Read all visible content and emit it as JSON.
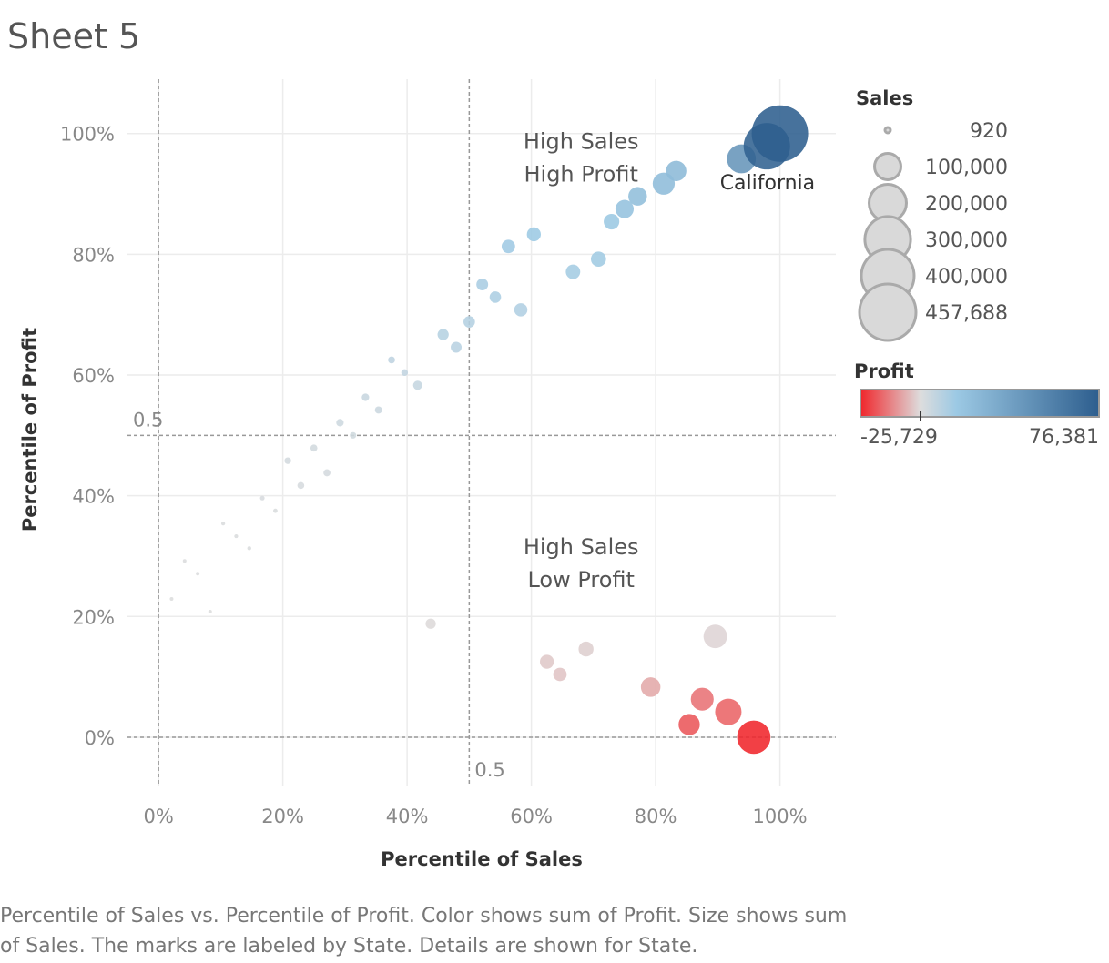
{
  "sheet_title": "Sheet 5",
  "caption": "Percentile of Sales vs. Percentile of Profit.  Color shows sum of Profit.  Size shows sum of Sales.  The marks are labeled by State.  Details are shown for State.",
  "colors": {
    "negative": "#f0262b",
    "neutral": "#dddddd",
    "light_positive": "#9cc9e4",
    "positive": "#2d5e8e",
    "grid": "#ececec",
    "reference_line": "#999999"
  },
  "chart_data": {
    "type": "scatter",
    "title": "Sheet 5",
    "xlabel": "Percentile of Sales",
    "ylabel": "Percentile of Profit",
    "xlim": [
      -0.05,
      1.09
    ],
    "ylim": [
      -0.08,
      1.09
    ],
    "x_ticks": [
      "0%",
      "20%",
      "40%",
      "60%",
      "80%",
      "100%"
    ],
    "y_ticks": [
      "0%",
      "20%",
      "40%",
      "60%",
      "80%",
      "100%"
    ],
    "x_tick_values": [
      0,
      0.2,
      0.4,
      0.6,
      0.8,
      1.0
    ],
    "y_tick_values": [
      0,
      0.2,
      0.4,
      0.6,
      0.8,
      1.0
    ],
    "grid": true,
    "reference_lines": [
      {
        "axis": "x",
        "value": 0,
        "label": ""
      },
      {
        "axis": "x",
        "value": 0.5,
        "label": "0.5"
      },
      {
        "axis": "y",
        "value": 0,
        "label": ""
      },
      {
        "axis": "y",
        "value": 0.5,
        "label": "0.5"
      }
    ],
    "annotations": [
      {
        "lines": [
          "High Sales",
          "High Profit"
        ],
        "x": 0.68,
        "y": 0.975
      },
      {
        "lines": [
          "High Sales",
          "Low Profit"
        ],
        "x": 0.68,
        "y": 0.303
      }
    ],
    "point_labels": [
      {
        "text": "California",
        "x": 0.98,
        "y": 0.92
      }
    ],
    "points": [
      {
        "x": 1.0,
        "y": 1.0,
        "sales": 457688,
        "profit": 76381
      },
      {
        "x": 0.979,
        "y": 0.979,
        "sales": 310000,
        "profit": 74000
      },
      {
        "x": 0.938,
        "y": 0.958,
        "sales": 120000,
        "profit": 43000
      },
      {
        "x": 0.833,
        "y": 0.938,
        "sales": 60000,
        "profit": 21000
      },
      {
        "x": 0.813,
        "y": 0.917,
        "sales": 70000,
        "profit": 19500
      },
      {
        "x": 0.771,
        "y": 0.896,
        "sales": 50000,
        "profit": 18000
      },
      {
        "x": 0.75,
        "y": 0.875,
        "sales": 48000,
        "profit": 16000
      },
      {
        "x": 0.729,
        "y": 0.854,
        "sales": 35000,
        "profit": 12000
      },
      {
        "x": 0.708,
        "y": 0.792,
        "sales": 33000,
        "profit": 10500
      },
      {
        "x": 0.667,
        "y": 0.771,
        "sales": 30000,
        "profit": 10000
      },
      {
        "x": 0.604,
        "y": 0.833,
        "sales": 28000,
        "profit": 11500
      },
      {
        "x": 0.563,
        "y": 0.813,
        "sales": 26000,
        "profit": 11000
      },
      {
        "x": 0.583,
        "y": 0.708,
        "sales": 25000,
        "profit": 8000
      },
      {
        "x": 0.521,
        "y": 0.75,
        "sales": 20000,
        "profit": 9000
      },
      {
        "x": 0.542,
        "y": 0.729,
        "sales": 19000,
        "profit": 8700
      },
      {
        "x": 0.5,
        "y": 0.688,
        "sales": 19000,
        "profit": 7300
      },
      {
        "x": 0.458,
        "y": 0.667,
        "sales": 18000,
        "profit": 7000
      },
      {
        "x": 0.479,
        "y": 0.646,
        "sales": 17000,
        "profit": 6500
      },
      {
        "x": 0.417,
        "y": 0.583,
        "sales": 12000,
        "profit": 4200
      },
      {
        "x": 0.375,
        "y": 0.625,
        "sales": 7000,
        "profit": 5500
      },
      {
        "x": 0.396,
        "y": 0.604,
        "sales": 6500,
        "profit": 5000
      },
      {
        "x": 0.333,
        "y": 0.563,
        "sales": 8000,
        "profit": 3800
      },
      {
        "x": 0.354,
        "y": 0.542,
        "sales": 7500,
        "profit": 3200
      },
      {
        "x": 0.292,
        "y": 0.521,
        "sales": 8000,
        "profit": 2800
      },
      {
        "x": 0.313,
        "y": 0.5,
        "sales": 6000,
        "profit": 2400
      },
      {
        "x": 0.208,
        "y": 0.458,
        "sales": 6500,
        "profit": 1800
      },
      {
        "x": 0.25,
        "y": 0.479,
        "sales": 7000,
        "profit": 2100
      },
      {
        "x": 0.229,
        "y": 0.417,
        "sales": 6800,
        "profit": 1300
      },
      {
        "x": 0.271,
        "y": 0.438,
        "sales": 7200,
        "profit": 1500
      },
      {
        "x": 0.167,
        "y": 0.396,
        "sales": 3000,
        "profit": 1000
      },
      {
        "x": 0.188,
        "y": 0.375,
        "sales": 2800,
        "profit": 800
      },
      {
        "x": 0.104,
        "y": 0.354,
        "sales": 2200,
        "profit": 600
      },
      {
        "x": 0.125,
        "y": 0.333,
        "sales": 2100,
        "profit": 500
      },
      {
        "x": 0.146,
        "y": 0.313,
        "sales": 2300,
        "profit": 450
      },
      {
        "x": 0.042,
        "y": 0.292,
        "sales": 1500,
        "profit": 350
      },
      {
        "x": 0.063,
        "y": 0.271,
        "sales": 1600,
        "profit": 300
      },
      {
        "x": 0.021,
        "y": 0.229,
        "sales": 1200,
        "profit": 200
      },
      {
        "x": 0.083,
        "y": 0.208,
        "sales": 920,
        "profit": 150
      },
      {
        "x": 0.438,
        "y": 0.188,
        "sales": 15000,
        "profit": -500
      },
      {
        "x": 0.896,
        "y": 0.167,
        "sales": 80000,
        "profit": -1200
      },
      {
        "x": 0.688,
        "y": 0.146,
        "sales": 32000,
        "profit": -2000
      },
      {
        "x": 0.625,
        "y": 0.125,
        "sales": 28000,
        "profit": -3000
      },
      {
        "x": 0.646,
        "y": 0.104,
        "sales": 26000,
        "profit": -3500
      },
      {
        "x": 0.792,
        "y": 0.083,
        "sales": 55000,
        "profit": -7500
      },
      {
        "x": 0.875,
        "y": 0.063,
        "sales": 75000,
        "profit": -15000
      },
      {
        "x": 0.917,
        "y": 0.042,
        "sales": 100000,
        "profit": -17000
      },
      {
        "x": 0.854,
        "y": 0.021,
        "sales": 65000,
        "profit": -19000
      },
      {
        "x": 0.958,
        "y": 0.0,
        "sales": 160000,
        "profit": -25729
      }
    ]
  },
  "legend_sales": {
    "title": "Sales",
    "items": [
      {
        "label": "920",
        "value": 920
      },
      {
        "label": "100,000",
        "value": 100000
      },
      {
        "label": "200,000",
        "value": 200000
      },
      {
        "label": "300,000",
        "value": 300000
      },
      {
        "label": "400,000",
        "value": 400000
      },
      {
        "label": "457,688",
        "value": 457688
      }
    ]
  },
  "legend_profit": {
    "title": "Profit",
    "min_label": "-25,729",
    "max_label": "76,381",
    "min": -25729,
    "max": 76381
  }
}
